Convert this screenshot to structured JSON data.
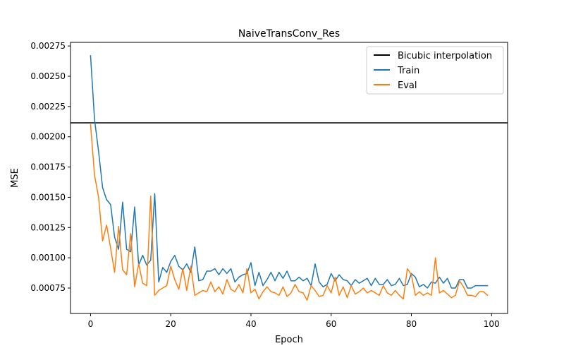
{
  "chart_data": {
    "type": "line",
    "title": "NaiveTransConv_Res",
    "xlabel": "Epoch",
    "ylabel": "MSE",
    "xlim": [
      -5,
      104
    ],
    "ylim": [
      0.00054,
      0.00278
    ],
    "xticks": [
      0,
      20,
      40,
      60,
      80,
      100
    ],
    "xtick_labels": [
      "0",
      "20",
      "40",
      "60",
      "80",
      "100"
    ],
    "yticks": [
      0.00075,
      0.001,
      0.00125,
      0.0015,
      0.00175,
      0.002,
      0.00225,
      0.0025,
      0.00275
    ],
    "ytick_labels": [
      "0.00075",
      "0.00100",
      "0.00125",
      "0.00150",
      "0.00175",
      "0.00200",
      "0.00225",
      "0.00250",
      "0.00275"
    ],
    "grid": false,
    "legend_position": "top-right",
    "hlines": [
      {
        "name": "Bicubic interpolation",
        "y": 0.002115,
        "color": "#000000"
      }
    ],
    "series": [
      {
        "name": "Train",
        "color": "#1f77b4",
        "x": [
          0,
          1,
          2,
          3,
          4,
          5,
          6,
          7,
          8,
          9,
          10,
          11,
          12,
          13,
          14,
          15,
          16,
          17,
          18,
          19,
          20,
          21,
          22,
          23,
          24,
          25,
          26,
          27,
          28,
          29,
          30,
          31,
          32,
          33,
          34,
          35,
          36,
          37,
          38,
          39,
          40,
          41,
          42,
          43,
          44,
          45,
          46,
          47,
          48,
          49,
          50,
          51,
          52,
          53,
          54,
          55,
          56,
          57,
          58,
          59,
          60,
          61,
          62,
          63,
          64,
          65,
          66,
          67,
          68,
          69,
          70,
          71,
          72,
          73,
          74,
          75,
          76,
          77,
          78,
          79,
          80,
          81,
          82,
          83,
          84,
          85,
          86,
          87,
          88,
          89,
          90,
          91,
          92,
          93,
          94,
          95,
          96,
          97,
          98,
          99
        ],
        "values": [
          0.00267,
          0.00214,
          0.00188,
          0.00158,
          0.00148,
          0.00144,
          0.00117,
          0.00107,
          0.00146,
          0.00107,
          0.00105,
          0.00142,
          0.00094,
          0.00102,
          0.00094,
          0.00098,
          0.00153,
          0.0008,
          0.00092,
          0.00088,
          0.00097,
          0.00102,
          0.00093,
          0.0009,
          0.00095,
          0.00088,
          0.00109,
          0.00081,
          0.00082,
          0.00089,
          0.00089,
          0.00091,
          0.00086,
          0.00091,
          0.00087,
          0.00091,
          0.0008,
          0.00084,
          0.00086,
          0.00087,
          0.00096,
          0.00077,
          0.00088,
          0.00077,
          0.00082,
          0.00088,
          0.00081,
          0.00088,
          0.00083,
          0.00089,
          0.00081,
          0.00081,
          0.00084,
          0.00081,
          0.00083,
          0.00077,
          0.00095,
          0.0008,
          0.00076,
          0.00078,
          0.00087,
          0.00081,
          0.00086,
          0.00082,
          0.00081,
          0.00077,
          0.00082,
          0.00079,
          0.00081,
          0.00083,
          0.00077,
          0.00083,
          0.00078,
          0.00078,
          0.00082,
          0.00077,
          0.00078,
          0.00083,
          0.00077,
          0.00078,
          0.00087,
          0.00084,
          0.00076,
          0.00078,
          0.00075,
          0.0008,
          0.00079,
          0.00084,
          0.00079,
          0.00083,
          0.00075,
          0.00075,
          0.00082,
          0.00082,
          0.00075,
          0.00075,
          0.00077,
          0.00077,
          0.00077,
          0.00077
        ]
      },
      {
        "name": "Eval",
        "color": "#ff7f0e",
        "x": [
          0,
          1,
          2,
          3,
          4,
          5,
          6,
          7,
          8,
          9,
          10,
          11,
          12,
          13,
          14,
          15,
          16,
          17,
          18,
          19,
          20,
          21,
          22,
          23,
          24,
          25,
          26,
          27,
          28,
          29,
          30,
          31,
          32,
          33,
          34,
          35,
          36,
          37,
          38,
          39,
          40,
          41,
          42,
          43,
          44,
          45,
          46,
          47,
          48,
          49,
          50,
          51,
          52,
          53,
          54,
          55,
          56,
          57,
          58,
          59,
          60,
          61,
          62,
          63,
          64,
          65,
          66,
          67,
          68,
          69,
          70,
          71,
          72,
          73,
          74,
          75,
          76,
          77,
          78,
          79,
          80,
          81,
          82,
          83,
          84,
          85,
          86,
          87,
          88,
          89,
          90,
          91,
          92,
          93,
          94,
          95,
          96,
          97,
          98,
          99
        ],
        "values": [
          0.0021,
          0.00168,
          0.0015,
          0.00114,
          0.00127,
          0.00108,
          0.00088,
          0.00126,
          0.0009,
          0.00086,
          0.0012,
          0.00076,
          0.00095,
          0.00079,
          0.00077,
          0.00151,
          0.00069,
          0.00073,
          0.00075,
          0.00077,
          0.00093,
          0.00082,
          0.00074,
          0.00091,
          0.00073,
          0.00093,
          0.00069,
          0.00071,
          0.00073,
          0.00072,
          0.0008,
          0.00072,
          0.00076,
          0.0007,
          0.00082,
          0.00074,
          0.00072,
          0.00078,
          0.00071,
          0.00091,
          0.00071,
          0.00074,
          0.00066,
          0.00072,
          0.00076,
          0.00072,
          0.00071,
          0.00069,
          0.00076,
          0.00068,
          0.00071,
          0.00078,
          0.00072,
          0.00071,
          0.00065,
          0.00077,
          0.00073,
          0.00068,
          0.00069,
          0.00077,
          0.00071,
          0.00084,
          0.00069,
          0.00076,
          0.00067,
          0.00077,
          0.0007,
          0.00072,
          0.00075,
          0.00071,
          0.00073,
          0.00071,
          0.00069,
          0.00077,
          0.00071,
          0.00069,
          0.00073,
          0.00069,
          0.00066,
          0.00091,
          0.00086,
          0.00069,
          0.00072,
          0.00069,
          0.00071,
          0.00069,
          0.001,
          0.00071,
          0.00073,
          0.0007,
          0.00067,
          0.00069,
          0.00081,
          0.00076,
          0.00069,
          0.00069,
          0.00068,
          0.00072,
          0.00072,
          0.00069
        ]
      }
    ]
  }
}
